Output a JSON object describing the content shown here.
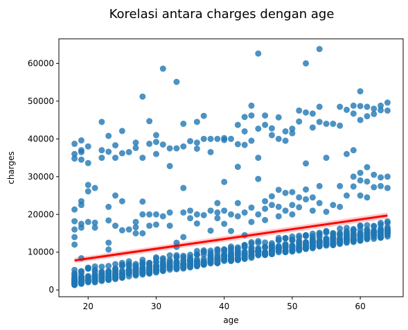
{
  "chart_data": {
    "type": "scatter",
    "title": "Korelasi antara charges dengan age",
    "xlabel": "age",
    "ylabel": "charges",
    "xlim": [
      15.7,
      66.3
    ],
    "ylim": [
      -1800,
      66500
    ],
    "x_ticks": [
      20,
      30,
      40,
      50,
      60
    ],
    "y_ticks": [
      0,
      10000,
      20000,
      30000,
      40000,
      50000,
      60000
    ],
    "point_color": "#1f77b4",
    "line_color": "#ff0000",
    "band_color": "#ffb3b3",
    "regression": {
      "x": [
        18,
        64
      ],
      "y": [
        7800,
        19700
      ],
      "ci_low": [
        7100,
        18900
      ],
      "ci_high": [
        8500,
        20500
      ]
    },
    "outliers": [
      [
        18,
        38700
      ],
      [
        18,
        36000
      ],
      [
        18,
        34800
      ],
      [
        18,
        21300
      ],
      [
        18,
        18200
      ],
      [
        18,
        16000
      ],
      [
        18,
        14000
      ],
      [
        18,
        12000
      ],
      [
        19,
        39600
      ],
      [
        19,
        37000
      ],
      [
        19,
        36500
      ],
      [
        19,
        34500
      ],
      [
        19,
        23500
      ],
      [
        19,
        22500
      ],
      [
        19,
        17500
      ],
      [
        19,
        16500
      ],
      [
        19,
        8400
      ],
      [
        20,
        38000
      ],
      [
        20,
        33600
      ],
      [
        20,
        27800
      ],
      [
        20,
        26100
      ],
      [
        20,
        18000
      ],
      [
        21,
        27000
      ],
      [
        21,
        16500
      ],
      [
        21,
        17800
      ],
      [
        22,
        44500
      ],
      [
        22,
        37000
      ],
      [
        22,
        35000
      ],
      [
        23,
        40800
      ],
      [
        23,
        36600
      ],
      [
        23,
        22000
      ],
      [
        23,
        18400
      ],
      [
        23,
        12500
      ],
      [
        23,
        10700
      ],
      [
        24,
        38300
      ],
      [
        24,
        35000
      ],
      [
        24,
        25000
      ],
      [
        24,
        17000
      ],
      [
        25,
        42100
      ],
      [
        25,
        36200
      ],
      [
        25,
        23500
      ],
      [
        25,
        15800
      ],
      [
        26,
        36500
      ],
      [
        26,
        16000
      ],
      [
        27,
        39000
      ],
      [
        27,
        37600
      ],
      [
        27,
        18000
      ],
      [
        27,
        16600
      ],
      [
        27,
        15000
      ],
      [
        28,
        51200
      ],
      [
        28,
        35000
      ],
      [
        28,
        23400
      ],
      [
        28,
        20000
      ],
      [
        28,
        15000
      ],
      [
        29,
        44700
      ],
      [
        29,
        38700
      ],
      [
        29,
        20000
      ],
      [
        29,
        17000
      ],
      [
        30,
        41000
      ],
      [
        30,
        39200
      ],
      [
        30,
        36000
      ],
      [
        30,
        20000
      ],
      [
        30,
        17300
      ],
      [
        31,
        58600
      ],
      [
        31,
        38500
      ],
      [
        31,
        19500
      ],
      [
        32,
        32800
      ],
      [
        32,
        37500
      ],
      [
        32,
        20500
      ],
      [
        32,
        17000
      ],
      [
        33,
        55100
      ],
      [
        33,
        37500
      ],
      [
        33,
        12500
      ],
      [
        33,
        11400
      ],
      [
        34,
        44000
      ],
      [
        34,
        38000
      ],
      [
        34,
        27000
      ],
      [
        34,
        20500
      ],
      [
        34,
        14000
      ],
      [
        35,
        39400
      ],
      [
        35,
        21000
      ],
      [
        35,
        19000
      ],
      [
        36,
        44500
      ],
      [
        36,
        39000
      ],
      [
        36,
        37400
      ],
      [
        36,
        20000
      ],
      [
        36,
        17600
      ],
      [
        37,
        46100
      ],
      [
        37,
        40000
      ],
      [
        37,
        19800
      ],
      [
        38,
        40000
      ],
      [
        38,
        36500
      ],
      [
        38,
        21000
      ],
      [
        38,
        15700
      ],
      [
        39,
        40000
      ],
      [
        39,
        23000
      ],
      [
        39,
        20500
      ],
      [
        39,
        19000
      ],
      [
        40,
        40200
      ],
      [
        40,
        39700
      ],
      [
        40,
        28600
      ],
      [
        40,
        21000
      ],
      [
        40,
        17500
      ],
      [
        41,
        40000
      ],
      [
        41,
        20000
      ],
      [
        41,
        15600
      ],
      [
        42,
        43700
      ],
      [
        42,
        38600
      ],
      [
        42,
        32600
      ],
      [
        42,
        23000
      ],
      [
        42,
        19500
      ],
      [
        43,
        45800
      ],
      [
        43,
        42000
      ],
      [
        43,
        38400
      ],
      [
        43,
        20500
      ],
      [
        43,
        14500
      ],
      [
        44,
        48800
      ],
      [
        44,
        46200
      ],
      [
        44,
        39500
      ],
      [
        44,
        21800
      ],
      [
        44,
        18000
      ],
      [
        45,
        62600
      ],
      [
        45,
        42700
      ],
      [
        45,
        35000
      ],
      [
        45,
        29400
      ],
      [
        45,
        20000
      ],
      [
        46,
        46200
      ],
      [
        46,
        43700
      ],
      [
        46,
        23500
      ],
      [
        46,
        21500
      ],
      [
        46,
        18500
      ],
      [
        47,
        42800
      ],
      [
        47,
        41000
      ],
      [
        47,
        24800
      ],
      [
        47,
        22500
      ],
      [
        48,
        45700
      ],
      [
        48,
        40000
      ],
      [
        48,
        26500
      ],
      [
        48,
        22000
      ],
      [
        48,
        19500
      ],
      [
        49,
        42000
      ],
      [
        49,
        39500
      ],
      [
        49,
        25700
      ],
      [
        49,
        21000
      ],
      [
        50,
        42700
      ],
      [
        50,
        41500
      ],
      [
        50,
        25900
      ],
      [
        50,
        22500
      ],
      [
        50,
        20000
      ],
      [
        51,
        47500
      ],
      [
        51,
        44600
      ],
      [
        51,
        24500
      ],
      [
        51,
        21900
      ],
      [
        52,
        60000
      ],
      [
        52,
        47000
      ],
      [
        52,
        33500
      ],
      [
        52,
        26600
      ],
      [
        52,
        24000
      ],
      [
        53,
        46700
      ],
      [
        53,
        43000
      ],
      [
        53,
        24500
      ],
      [
        53,
        21000
      ],
      [
        54,
        63800
      ],
      [
        54,
        48500
      ],
      [
        54,
        44500
      ],
      [
        54,
        27500
      ],
      [
        54,
        23000
      ],
      [
        55,
        44000
      ],
      [
        55,
        35000
      ],
      [
        55,
        20700
      ],
      [
        56,
        44000
      ],
      [
        56,
        22500
      ],
      [
        57,
        48500
      ],
      [
        57,
        43500
      ],
      [
        57,
        27500
      ],
      [
        57,
        22000
      ],
      [
        58,
        47700
      ],
      [
        58,
        36000
      ],
      [
        58,
        25000
      ],
      [
        59,
        48800
      ],
      [
        59,
        46700
      ],
      [
        59,
        37000
      ],
      [
        59,
        30000
      ],
      [
        59,
        27400
      ],
      [
        60,
        52600
      ],
      [
        60,
        48700
      ],
      [
        60,
        45000
      ],
      [
        60,
        31000
      ],
      [
        60,
        29000
      ],
      [
        60,
        25000
      ],
      [
        61,
        48500
      ],
      [
        61,
        46000
      ],
      [
        61,
        32500
      ],
      [
        61,
        28700
      ],
      [
        61,
        24500
      ],
      [
        62,
        48000
      ],
      [
        62,
        46600
      ],
      [
        62,
        30500
      ],
      [
        62,
        27200
      ],
      [
        63,
        48800
      ],
      [
        63,
        47600
      ],
      [
        63,
        29800
      ],
      [
        63,
        27500
      ],
      [
        64,
        49600
      ],
      [
        64,
        47500
      ],
      [
        64,
        30000
      ],
      [
        64,
        27000
      ]
    ]
  }
}
